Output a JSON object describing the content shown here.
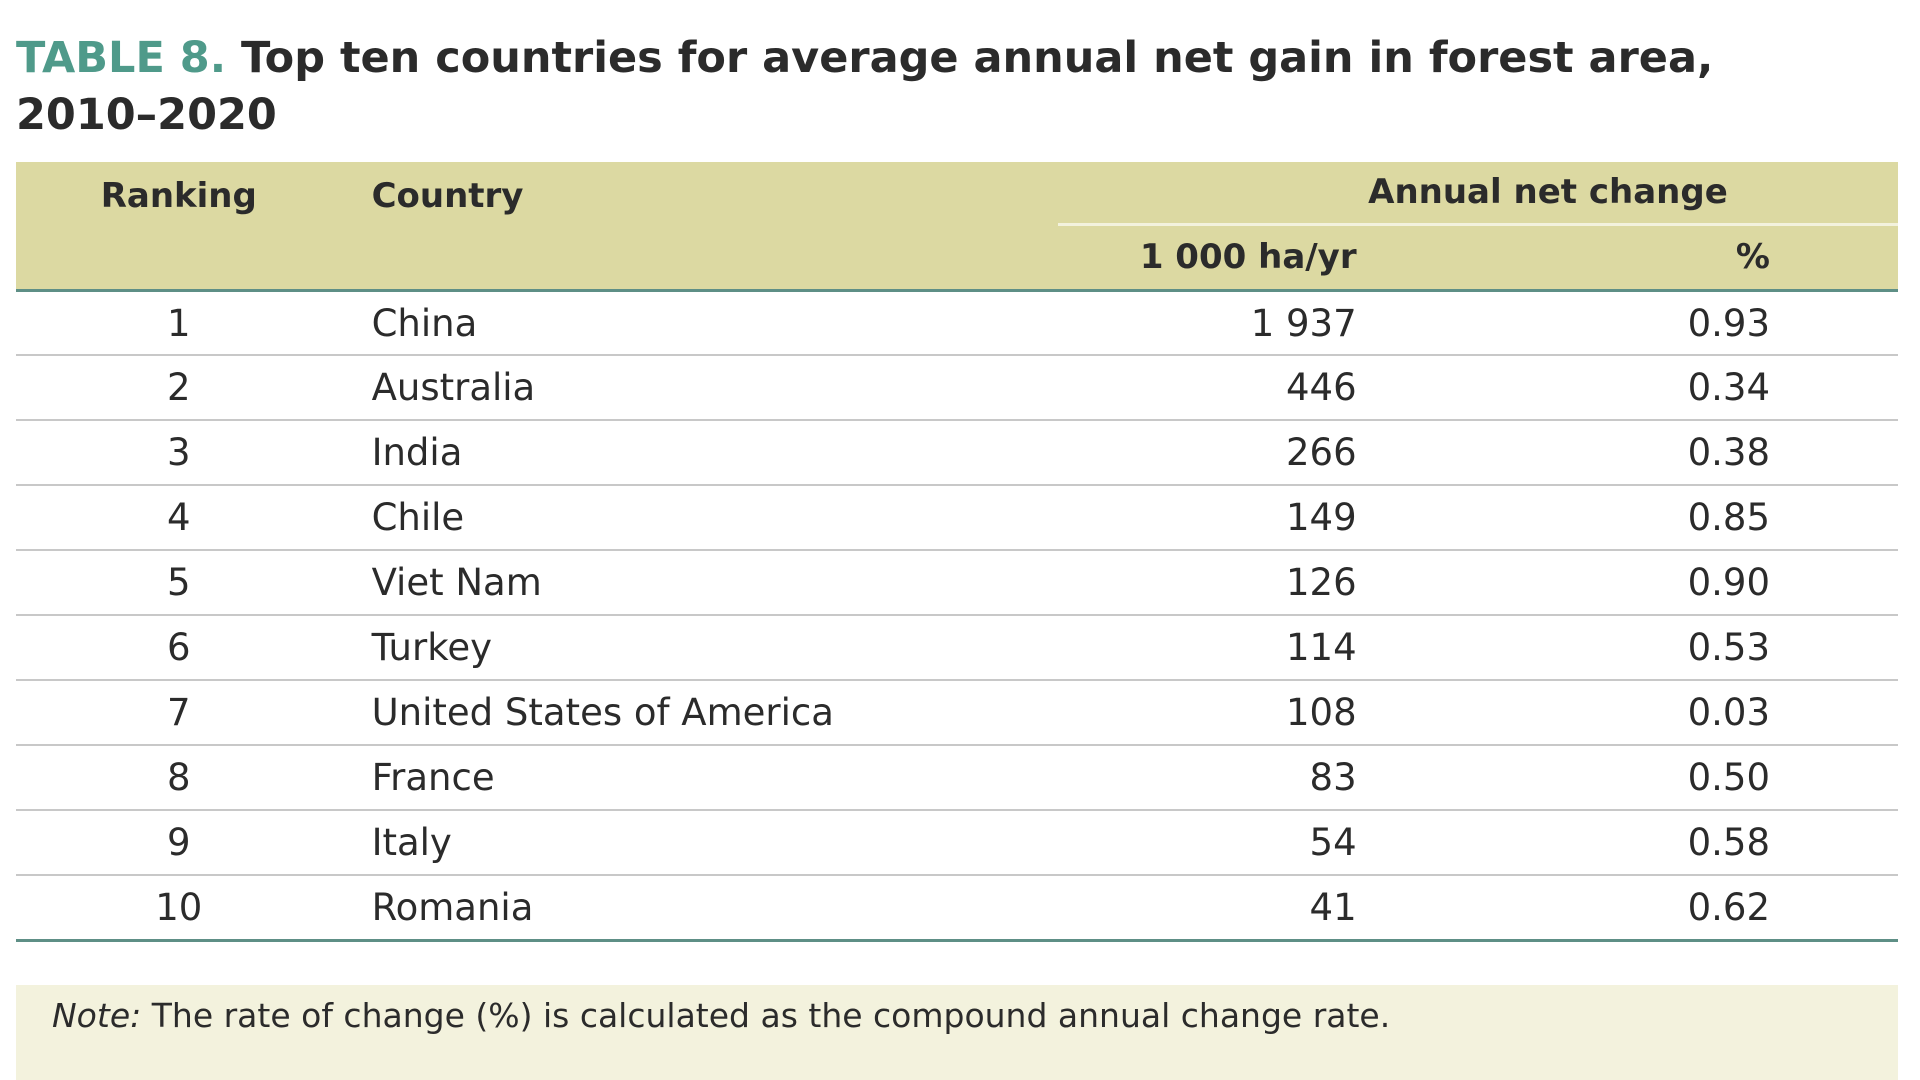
{
  "title": {
    "label": "TABLE 8.",
    "text": "Top ten countries for average annual net gain in forest area, 2010–2020"
  },
  "table": {
    "headers": {
      "ranking": "Ranking",
      "country": "Country",
      "change": "Annual net change",
      "unit_area": "1 000 ha/yr",
      "unit_pct": "%"
    },
    "rows": [
      [
        "1",
        "China",
        "1 937",
        "0.93"
      ],
      [
        "2",
        "Australia",
        "446",
        "0.34"
      ],
      [
        "3",
        "India",
        "266",
        "0.38"
      ],
      [
        "4",
        "Chile",
        "149",
        "0.85"
      ],
      [
        "5",
        "Viet Nam",
        "126",
        "0.90"
      ],
      [
        "6",
        "Turkey",
        "114",
        "0.53"
      ],
      [
        "7",
        "United States of America",
        "108",
        "0.03"
      ],
      [
        "8",
        "France",
        "83",
        "0.50"
      ],
      [
        "9",
        "Italy",
        "54",
        "0.58"
      ],
      [
        "10",
        "Romania",
        "41",
        "0.62"
      ]
    ]
  },
  "note": {
    "label": "Note:",
    "text": "The rate of change (%) is calculated as the compound annual change rate."
  }
}
